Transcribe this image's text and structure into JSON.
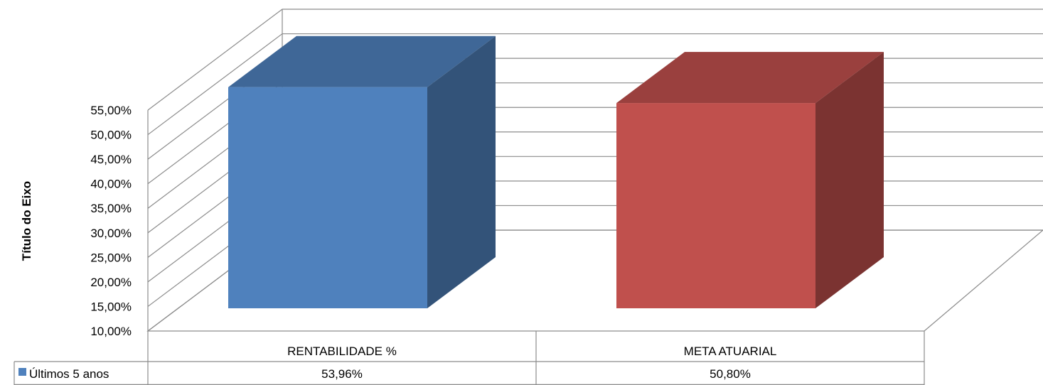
{
  "chart_data": {
    "type": "bar",
    "ylabel": "Título do Eixo",
    "ylim": [
      0.1,
      0.55
    ],
    "yticks": [
      0.1,
      0.15,
      0.2,
      0.25,
      0.3,
      0.35,
      0.4,
      0.45,
      0.5,
      0.55
    ],
    "ytick_labels": [
      "10,00%",
      "15,00%",
      "20,00%",
      "25,00%",
      "30,00%",
      "35,00%",
      "40,00%",
      "45,00%",
      "50,00%",
      "55,00%"
    ],
    "grid": true,
    "three_d": true,
    "categories": [
      "RENTABILIDADE %",
      "META ATUARIAL"
    ],
    "series": [
      {
        "name": "Últimos 5 anos",
        "values": [
          0.5396,
          0.508
        ],
        "value_labels": [
          "53,96%",
          "50,80%"
        ]
      }
    ],
    "bar_colors": [
      "#4F81BD",
      "#C0504D"
    ],
    "legend_swatch_color": "#4F81BD",
    "legend": "data-table-left"
  }
}
